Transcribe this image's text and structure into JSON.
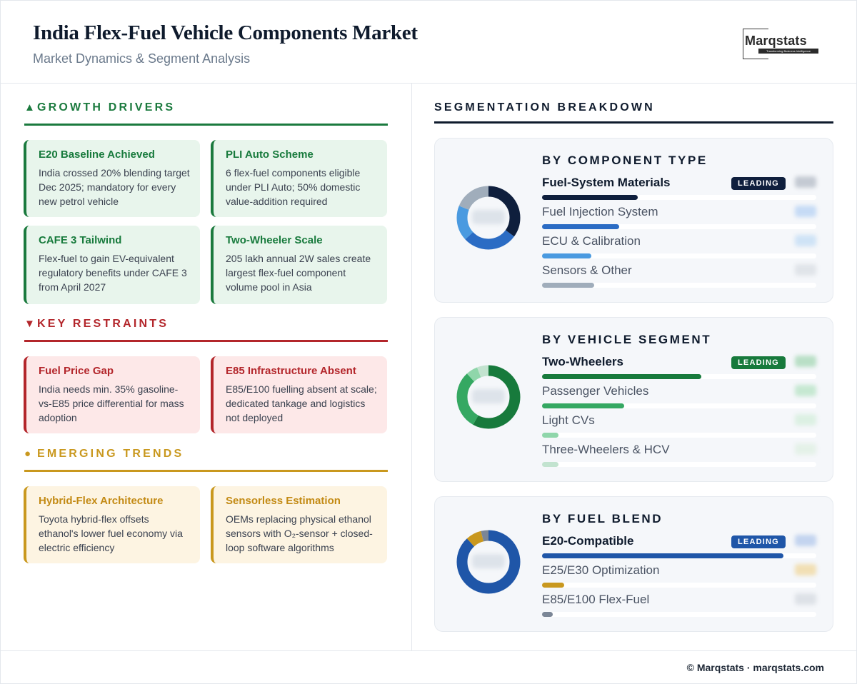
{
  "header": {
    "title": "India Flex-Fuel Vehicle Components Market",
    "subtitle": "Market Dynamics & Segment Analysis",
    "logo_text": "Marqstats",
    "logo_tagline": "Transforming Business Intelligence"
  },
  "left": {
    "drivers": {
      "marker": "▲",
      "heading": "GROWTH DRIVERS",
      "color": "#1b7a3e",
      "cards": [
        {
          "title": "E20 Baseline Achieved",
          "body": "India crossed 20% blending target Dec 2025; mandatory for every new petrol vehicle"
        },
        {
          "title": "PLI Auto Scheme",
          "body": "6 flex-fuel components eligible under PLI Auto; 50% domestic value-addition required"
        },
        {
          "title": "CAFE 3 Tailwind",
          "body": "Flex-fuel to gain EV-equivalent regulatory benefits under CAFE 3 from April 2027"
        },
        {
          "title": "Two-Wheeler Scale",
          "body": "205 lakh annual 2W sales create largest flex-fuel component volume pool in Asia"
        }
      ]
    },
    "restraints": {
      "marker": "▼",
      "heading": "KEY RESTRAINTS",
      "color": "#b3262b",
      "cards": [
        {
          "title": "Fuel Price Gap",
          "body": "India needs min. 35% gasoline-vs-E85 price differential for mass adoption"
        },
        {
          "title": "E85 Infrastructure Absent",
          "body": "E85/E100 fuelling absent at scale; dedicated tankage and logistics not deployed"
        }
      ]
    },
    "trends": {
      "marker": "●",
      "heading": "EMERGING TRENDS",
      "color": "#c9981e",
      "cards": [
        {
          "title": "Hybrid-Flex Architecture",
          "body": "Toyota hybrid-flex offsets ethanol's lower fuel economy via electric efficiency"
        },
        {
          "title": "Sensorless Estimation",
          "body": "OEMs replacing physical ethanol sensors with O₂-sensor + closed-loop software algorithms"
        }
      ]
    }
  },
  "right": {
    "heading": "SEGMENTATION BREAKDOWN",
    "badge_label": "LEADING",
    "panels": [
      {
        "title": "BY COMPONENT TYPE",
        "rows": [
          {
            "label": "Fuel-System Materials",
            "fill": 0.35,
            "color": "#0f1f3d",
            "leading": true
          },
          {
            "label": "Fuel Injection System",
            "fill": 0.28,
            "color": "#2b6cc4",
            "leading": false
          },
          {
            "label": "ECU & Calibration",
            "fill": 0.18,
            "color": "#4a9ae0",
            "leading": false
          },
          {
            "label": "Sensors & Other",
            "fill": 0.19,
            "color": "#a0adbb",
            "leading": false
          }
        ]
      },
      {
        "title": "BY VEHICLE SEGMENT",
        "rows": [
          {
            "label": "Two-Wheelers",
            "fill": 0.58,
            "color": "#177a3c",
            "leading": true
          },
          {
            "label": "Passenger Vehicles",
            "fill": 0.3,
            "color": "#35a862",
            "leading": false
          },
          {
            "label": "Light CVs",
            "fill": 0.06,
            "color": "#8fd6aa",
            "leading": false
          },
          {
            "label": "Three-Wheelers & HCV",
            "fill": 0.06,
            "color": "#c2e3cf",
            "leading": false
          }
        ]
      },
      {
        "title": "BY FUEL BLEND",
        "rows": [
          {
            "label": "E20-Compatible",
            "fill": 0.88,
            "color": "#1f56a8",
            "leading": true
          },
          {
            "label": "E25/E30 Optimization",
            "fill": 0.08,
            "color": "#c9981e",
            "leading": false
          },
          {
            "label": "E85/E100 Flex-Fuel",
            "fill": 0.04,
            "color": "#7b8696",
            "leading": false
          }
        ]
      }
    ]
  },
  "footer": {
    "text": "© Marqstats · marqstats.com"
  }
}
